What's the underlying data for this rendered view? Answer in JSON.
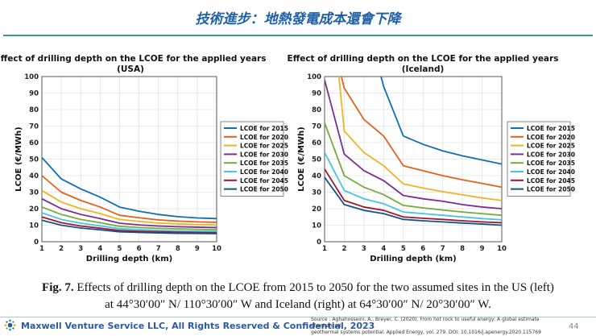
{
  "slide": {
    "title": "技術進步：地熱發電成本還會下降",
    "caption_fig": "Fig. 7.",
    "caption_line1": " Effects of drilling depth on the LCOE from 2015 to 2050 for the two assumed sites in the US (left)",
    "caption_line2": "at 44°30′00″ N/ 110°30′00″ W and Iceland (right) at 64°30′00″ N/ 20°30′00″ W.",
    "footer": "Maxwell Venture Service LLC, All Rights Reserved & Confidential, 2023",
    "source_line1": "Source : Aghahosseini, A., Breyer, C. (2020). From hot rock to useful energy: A global estimate of enhanced",
    "source_line2": "geothermal systems potential. Applied Energy, vol. 279.  DOI: 10.1016/j.apenergy.2020.115769",
    "page_number": "44"
  },
  "colors": {
    "title": "#1f5fa8",
    "rule": "#2aa38a"
  },
  "chart_data": [
    {
      "type": "line",
      "title": "Effect of drilling depth on the LCOE for the applied years",
      "subtitle": "(USA)",
      "xlabel": "Drilling depth (km)",
      "ylabel": "LCOE (€/MWh)",
      "xlim": [
        1,
        10
      ],
      "ylim": [
        0,
        100
      ],
      "xticks": [
        1,
        2,
        3,
        4,
        5,
        6,
        7,
        8,
        9,
        10
      ],
      "yticks": [
        0,
        10,
        20,
        30,
        40,
        50,
        60,
        70,
        80,
        90,
        100
      ],
      "grid": true,
      "legend": "center-right",
      "x": [
        1,
        2,
        3,
        4,
        5,
        6,
        7,
        8,
        9,
        10
      ],
      "series": [
        {
          "name": "LCOE for 2015",
          "color": "#0e6fb0",
          "values": [
            51,
            38,
            32,
            27,
            21,
            18.5,
            16.5,
            15.2,
            14.4,
            14
          ]
        },
        {
          "name": "LCOE for 2020",
          "color": "#e2621b",
          "values": [
            40,
            30,
            25,
            21,
            16,
            14.5,
            13.2,
            12.5,
            12,
            11.8
          ]
        },
        {
          "name": "LCOE for 2025",
          "color": "#f0b323",
          "values": [
            31,
            24,
            20,
            17,
            13.5,
            12.3,
            11.3,
            10.8,
            10.4,
            10.2
          ]
        },
        {
          "name": "LCOE for 2030",
          "color": "#7a2f8f",
          "values": [
            26,
            20,
            16.5,
            14,
            11.2,
            10.2,
            9.5,
            9.1,
            8.8,
            8.6
          ]
        },
        {
          "name": "LCOE for 2035",
          "color": "#74ac3b",
          "values": [
            21,
            16.5,
            13.5,
            11.5,
            9.3,
            8.6,
            8.1,
            7.8,
            7.5,
            7.4
          ]
        },
        {
          "name": "LCOE for 2040",
          "color": "#43c4e8",
          "values": [
            17.5,
            13.5,
            11.2,
            9.6,
            7.9,
            7.3,
            6.9,
            6.6,
            6.4,
            6.3
          ]
        },
        {
          "name": "LCOE for 2045",
          "color": "#a3162f",
          "values": [
            15,
            11.5,
            9.5,
            8.2,
            6.8,
            6.3,
            6,
            5.8,
            5.6,
            5.5
          ]
        },
        {
          "name": "LCOE for 2050",
          "color": "#11538a",
          "values": [
            13,
            10,
            8.3,
            7.2,
            6,
            5.6,
            5.3,
            5.1,
            5,
            4.9
          ]
        }
      ]
    },
    {
      "type": "line",
      "title": "Effect of drilling depth on the LCOE for the applied years",
      "subtitle": "(Iceland)",
      "xlabel": "Drilling depth (km)",
      "ylabel": "LCOE (€/MWh)",
      "xlim": [
        1,
        10
      ],
      "ylim": [
        0,
        100
      ],
      "xticks": [
        1,
        2,
        3,
        4,
        5,
        6,
        7,
        8,
        9,
        10
      ],
      "yticks": [
        0,
        10,
        20,
        30,
        40,
        50,
        60,
        70,
        80,
        90,
        100
      ],
      "grid": true,
      "legend": "top-right",
      "x": [
        1,
        2,
        3,
        4,
        5,
        6,
        7,
        8,
        9,
        10
      ],
      "series": [
        {
          "name": "LCOE for 2015",
          "color": "#0e6fb0",
          "values": [
            null,
            null,
            null,
            94,
            64,
            59,
            55,
            52,
            49.5,
            47
          ]
        },
        {
          "name": "LCOE for 2020",
          "color": "#e2621b",
          "values": [
            null,
            93,
            74,
            64,
            46,
            43,
            40,
            37.5,
            35.3,
            33
          ]
        },
        {
          "name": "LCOE for 2025",
          "color": "#f0b323",
          "values": [
            null,
            67,
            54,
            46,
            35,
            32.5,
            30.3,
            28.4,
            26.5,
            25
          ]
        },
        {
          "name": "LCOE for 2030",
          "color": "#7a2f8f",
          "values": [
            98,
            53,
            43,
            37,
            28,
            26,
            24.5,
            22.5,
            21,
            20
          ]
        },
        {
          "name": "LCOE for 2035",
          "color": "#74ac3b",
          "values": [
            72,
            40,
            33,
            28.5,
            22,
            20.5,
            19.2,
            18,
            17,
            16
          ]
        },
        {
          "name": "LCOE for 2040",
          "color": "#43c4e8",
          "values": [
            54,
            31,
            26,
            23,
            18,
            17,
            16,
            15,
            14,
            13.3
          ]
        },
        {
          "name": "LCOE for 2045",
          "color": "#a3162f",
          "values": [
            44,
            25,
            21,
            19,
            15,
            14.2,
            13.5,
            12.7,
            12,
            11.5
          ]
        },
        {
          "name": "LCOE for 2050",
          "color": "#11538a",
          "values": [
            39,
            22.5,
            19,
            17,
            13.5,
            12.7,
            12,
            11.3,
            10.7,
            10
          ]
        }
      ]
    }
  ]
}
